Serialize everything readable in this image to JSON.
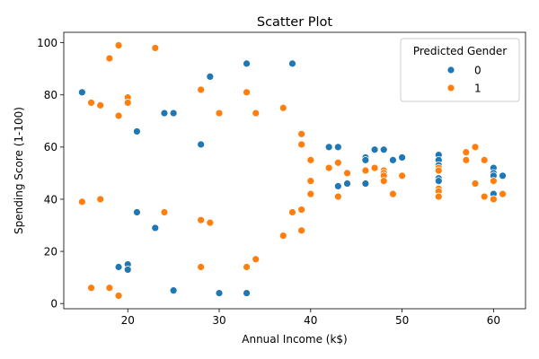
{
  "chart_data": {
    "type": "scatter",
    "title": "Scatter Plot",
    "xlabel": "Annual Income (k$)",
    "ylabel": "Spending Score (1-100)",
    "xlim": [
      13,
      63.5
    ],
    "ylim": [
      -2,
      104
    ],
    "xticks": [
      20,
      30,
      40,
      50,
      60
    ],
    "yticks": [
      0,
      20,
      40,
      60,
      80,
      100
    ],
    "grid": false,
    "legend": {
      "title": "Predicted Gender",
      "placement": "top-right"
    },
    "series": [
      {
        "name": "0",
        "color": "#1f77b4",
        "points": [
          [
            15,
            81
          ],
          [
            19,
            14
          ],
          [
            20,
            15
          ],
          [
            20,
            13
          ],
          [
            21,
            66
          ],
          [
            21,
            35
          ],
          [
            23,
            29
          ],
          [
            24,
            73
          ],
          [
            25,
            73
          ],
          [
            25,
            5
          ],
          [
            28,
            61
          ],
          [
            29,
            87
          ],
          [
            30,
            4
          ],
          [
            33,
            92
          ],
          [
            33,
            4
          ],
          [
            38,
            92
          ],
          [
            42,
            60
          ],
          [
            43,
            60
          ],
          [
            43,
            45
          ],
          [
            44,
            46
          ],
          [
            46,
            56
          ],
          [
            46,
            55
          ],
          [
            46,
            46
          ],
          [
            47,
            59
          ],
          [
            48,
            59
          ],
          [
            49,
            55
          ],
          [
            50,
            56
          ],
          [
            54,
            57
          ],
          [
            54,
            55
          ],
          [
            54,
            53
          ],
          [
            54,
            48
          ],
          [
            54,
            47
          ],
          [
            60,
            52
          ],
          [
            60,
            50
          ],
          [
            60,
            49
          ],
          [
            60,
            42
          ],
          [
            61,
            49
          ]
        ]
      },
      {
        "name": "1",
        "color": "#ff7f0e",
        "points": [
          [
            15,
            39
          ],
          [
            16,
            77
          ],
          [
            16,
            6
          ],
          [
            17,
            76
          ],
          [
            17,
            40
          ],
          [
            18,
            94
          ],
          [
            18,
            6
          ],
          [
            19,
            99
          ],
          [
            19,
            72
          ],
          [
            19,
            3
          ],
          [
            20,
            79
          ],
          [
            20,
            77
          ],
          [
            23,
            98
          ],
          [
            24,
            35
          ],
          [
            28,
            82
          ],
          [
            28,
            32
          ],
          [
            28,
            14
          ],
          [
            29,
            31
          ],
          [
            30,
            73
          ],
          [
            33,
            81
          ],
          [
            33,
            14
          ],
          [
            34,
            73
          ],
          [
            34,
            17
          ],
          [
            37,
            75
          ],
          [
            37,
            26
          ],
          [
            38,
            35
          ],
          [
            39,
            65
          ],
          [
            39,
            61
          ],
          [
            39,
            36
          ],
          [
            39,
            28
          ],
          [
            40,
            55
          ],
          [
            40,
            47
          ],
          [
            40,
            42
          ],
          [
            42,
            52
          ],
          [
            43,
            54
          ],
          [
            43,
            41
          ],
          [
            44,
            50
          ],
          [
            46,
            51
          ],
          [
            47,
            52
          ],
          [
            48,
            51
          ],
          [
            48,
            50
          ],
          [
            48,
            49
          ],
          [
            48,
            47
          ],
          [
            49,
            42
          ],
          [
            50,
            49
          ],
          [
            54,
            52
          ],
          [
            54,
            51
          ],
          [
            54,
            44
          ],
          [
            54,
            43
          ],
          [
            54,
            41
          ],
          [
            57,
            58
          ],
          [
            57,
            55
          ],
          [
            58,
            60
          ],
          [
            58,
            46
          ],
          [
            59,
            55
          ],
          [
            59,
            41
          ],
          [
            60,
            47
          ],
          [
            60,
            40
          ],
          [
            61,
            42
          ]
        ]
      }
    ]
  }
}
